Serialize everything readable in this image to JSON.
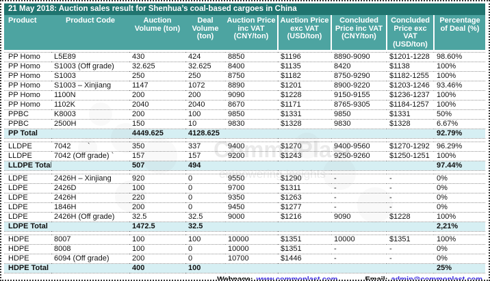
{
  "title": "21 May 2018: Auction sales result for Shenhua’s coal-based cargoes in China",
  "columns": [
    "Product",
    "Product Code",
    "Auction Volume (ton)",
    "Deal Volume (ton)",
    "Auction Price inc VAT (CNY/ton)",
    "Auction Price exc VAT (USD/ton)",
    "Concluded Price inc VAT (CNY/ton)",
    "Concluded Price exc VAT (USD/ton)",
    "Percentage of Deal (%)"
  ],
  "sections": [
    {
      "name": "PP",
      "rows": [
        {
          "cells": [
            "PP Homo",
            "L5E89",
            "430",
            "424",
            "8850",
            "$1196",
            "8890-9090",
            "$1201-1228",
            "98.60%"
          ]
        },
        {
          "cells": [
            "PP Homo",
            "S1003 (Off grade)",
            "32.625",
            "32.625",
            "8400",
            "$1135",
            "8420",
            "$1138",
            "100%"
          ]
        },
        {
          "cells": [
            "PP Homo",
            "S1003",
            "250",
            "250",
            "8750",
            "$1182",
            "8750-9290",
            "$1182-1255",
            "100%"
          ]
        },
        {
          "cells": [
            "PP Homo",
            "S1003 – Xinjiang",
            "1147",
            "1072",
            "8890",
            "$1201",
            "8900-9220",
            "$1203-1246",
            "93.46%"
          ]
        },
        {
          "cells": [
            "PP Homo",
            "1100N",
            "200",
            "200",
            "9090",
            "$1228",
            "9150-9155",
            "$1236-1237",
            "100%"
          ]
        },
        {
          "cells": [
            "PP Homo",
            "1102K",
            "2040",
            "2040",
            "8670",
            "$1171",
            "8765-9305",
            "$1184-1257",
            "100%"
          ]
        },
        {
          "cells": [
            "PPBC",
            "K8003",
            "200",
            "100",
            "9850",
            "$1331",
            "9850",
            "$1331",
            "50%"
          ]
        },
        {
          "cells": [
            "PPBC",
            "2500H",
            "150",
            "10",
            "9830",
            "$1328",
            "9830",
            "$1328",
            "6.67%"
          ]
        }
      ],
      "total": {
        "cells": [
          "PP Total",
          "",
          "4449.625",
          "4128.625",
          "",
          "",
          "",
          "",
          "92.79%"
        ]
      }
    },
    {
      "name": "LLDPE",
      "rows": [
        {
          "cells": [
            "LLDPE",
            "7042        `",
            "350",
            "337",
            "9400",
            "$1270",
            "9400-9560",
            "$1270-1292",
            "96.29%"
          ]
        },
        {
          "cells": [
            "LLDPE",
            "7042 (Off grade) `",
            "157",
            "157",
            "9200",
            "$1243",
            "9250-9260",
            "$1250-1251",
            "100%"
          ]
        }
      ],
      "total": {
        "cells": [
          "LLDPE Total",
          "",
          "507",
          "494",
          "",
          "",
          "",
          "",
          "97.44%"
        ]
      }
    },
    {
      "name": "LDPE",
      "rows": [
        {
          "cells": [
            "LDPE",
            "2426H – Xinjiang",
            "920",
            "0",
            "9550",
            "$1290",
            "-",
            "-",
            "0%"
          ]
        },
        {
          "cells": [
            "LDPE",
            "2426D",
            "100",
            "0",
            "9700",
            "$1311",
            "-",
            "-",
            "0%"
          ]
        },
        {
          "cells": [
            "LDPE",
            "2426H",
            "220",
            "0",
            "9350",
            "$1263",
            "-",
            "-",
            "0%"
          ]
        },
        {
          "cells": [
            "LDPE",
            "1846H",
            "200",
            "0",
            "9450",
            "$1277",
            "-",
            "-",
            "0%"
          ]
        },
        {
          "cells": [
            "LDPE",
            "2426H (Off grade)",
            "32.5",
            "32.5",
            "9000",
            "$1216",
            "9090",
            "$1228",
            "100%"
          ]
        }
      ],
      "total": {
        "cells": [
          "LDPE Total",
          "",
          "1472.5",
          "32.5",
          "",
          "",
          "",
          "",
          "2,21%"
        ]
      }
    },
    {
      "name": "HDPE",
      "rows": [
        {
          "cells": [
            "HDPE",
            "8007",
            "100",
            "100",
            "10000",
            "$1351",
            "10000",
            "$1351",
            "100%"
          ]
        },
        {
          "cells": [
            "HDPE",
            "8008",
            "100",
            "0",
            "10000",
            "$1351",
            "-",
            "-",
            "0%"
          ]
        },
        {
          "cells": [
            "HDPE",
            "6094 (Off grade)",
            "200",
            "0",
            "10700",
            "$1446",
            "-",
            "-",
            "0%"
          ]
        }
      ],
      "total": {
        "cells": [
          "HDPE Total",
          "",
          "400",
          "100",
          "",
          "",
          "",
          "",
          "25%"
        ]
      }
    }
  ],
  "footer": {
    "webpage_label": "Webpage:",
    "webpage_url": "www.commoplast.com",
    "email_label": "Email:",
    "email_value": "admin@commoplast.com"
  },
  "watermark": {
    "line1": "CommoPlast",
    "line2": "empowering Insights"
  },
  "colors": {
    "title_bar": "#20746f",
    "header": "#4da4a1",
    "total_row": "#d6eff3",
    "link": "#3b2bdf",
    "row_divider": "#8f8f8f"
  }
}
